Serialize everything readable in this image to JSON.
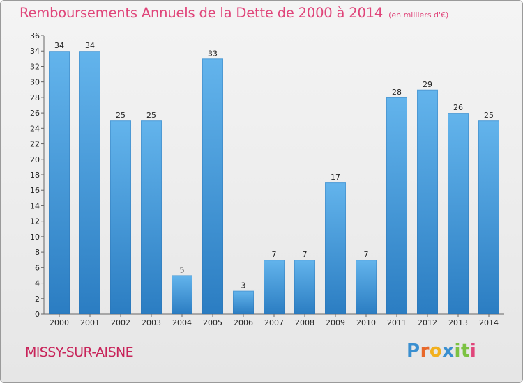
{
  "title": "Remboursements Annuels de la Dette de 2000 à 2014",
  "unit": "(en milliers d'€)",
  "commune": "MISSY-SUR-AISNE",
  "logo": {
    "letters": [
      "P",
      "r",
      "o",
      "x",
      "i",
      "t",
      "i"
    ],
    "colors": [
      "#3a8fd0",
      "#e8682a",
      "#f2b01e",
      "#3a8fd0",
      "#7cc242",
      "#7cc242",
      "#e0457a"
    ]
  },
  "colors": {
    "bar_top": "#63b4ec",
    "bar_bottom": "#2b7dc2",
    "title": "#e0457a",
    "commune": "#c8245a"
  },
  "chart_data": {
    "type": "bar",
    "title": "Remboursements Annuels de la Dette de 2000 à 2014",
    "xlabel": "",
    "ylabel": "(en milliers d'€)",
    "categories": [
      "2000",
      "2001",
      "2002",
      "2003",
      "2004",
      "2005",
      "2006",
      "2007",
      "2008",
      "2009",
      "2010",
      "2011",
      "2012",
      "2013",
      "2014"
    ],
    "values": [
      34,
      34,
      25,
      25,
      5,
      33,
      3,
      7,
      7,
      17,
      7,
      28,
      29,
      26,
      25
    ],
    "ylim": [
      0,
      36
    ],
    "yticks": [
      0,
      2,
      4,
      6,
      8,
      10,
      12,
      14,
      16,
      18,
      20,
      22,
      24,
      26,
      28,
      30,
      32,
      34,
      36
    ],
    "grid": false
  }
}
